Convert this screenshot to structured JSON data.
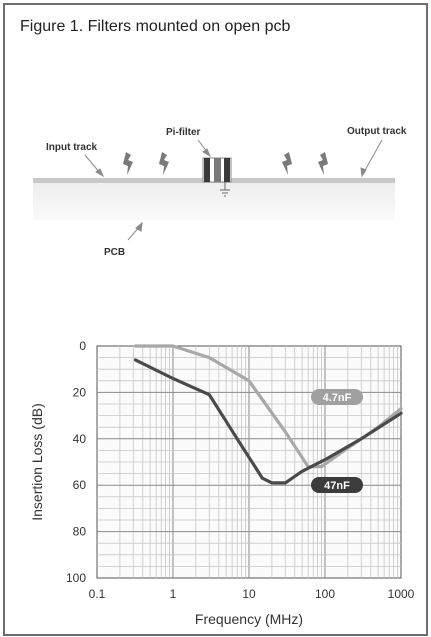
{
  "figure": {
    "title": "Figure 1.  Filters mounted on open pcb"
  },
  "diagram": {
    "labels": {
      "input_track": "Input track",
      "pi_filter": "Pi-filter",
      "output_track": "Output track",
      "pcb": "PCB"
    }
  },
  "chart_data": {
    "type": "line",
    "xlabel": "Frequency (MHz)",
    "ylabel": "Insertion Loss (dB)",
    "x_scale": "log",
    "xlim": [
      0.1,
      1000
    ],
    "ylim": [
      0,
      100
    ],
    "y_inverted": true,
    "grid": true,
    "x_ticks": [
      {
        "value": 0.1,
        "label": "0.1"
      },
      {
        "value": 1,
        "label": "1"
      },
      {
        "value": 10,
        "label": "10"
      },
      {
        "value": 100,
        "label": "100"
      },
      {
        "value": 1000,
        "label": "1000"
      }
    ],
    "y_ticks": [
      {
        "value": 0,
        "label": "0"
      },
      {
        "value": 20,
        "label": "20"
      },
      {
        "value": 40,
        "label": "40"
      },
      {
        "value": 60,
        "label": "60"
      },
      {
        "value": 80,
        "label": "80"
      },
      {
        "value": 100,
        "label": "100"
      }
    ],
    "series": [
      {
        "name": "4.7nF",
        "color": "#a8a8a8",
        "label_color": "#a0a0a0",
        "points": [
          [
            0.32,
            0
          ],
          [
            1,
            0
          ],
          [
            3,
            5
          ],
          [
            10,
            15
          ],
          [
            30,
            37
          ],
          [
            60,
            52
          ],
          [
            90,
            52
          ],
          [
            200,
            44
          ],
          [
            500,
            35
          ],
          [
            1000,
            27
          ]
        ]
      },
      {
        "name": "47nF",
        "color": "#4a4a4a",
        "label_color": "#3c3c3c",
        "points": [
          [
            0.32,
            6
          ],
          [
            1,
            14
          ],
          [
            3,
            21
          ],
          [
            8,
            43
          ],
          [
            15,
            57
          ],
          [
            20,
            59
          ],
          [
            30,
            59
          ],
          [
            50,
            54
          ],
          [
            100,
            49
          ],
          [
            300,
            40
          ],
          [
            1000,
            29
          ]
        ]
      }
    ]
  }
}
